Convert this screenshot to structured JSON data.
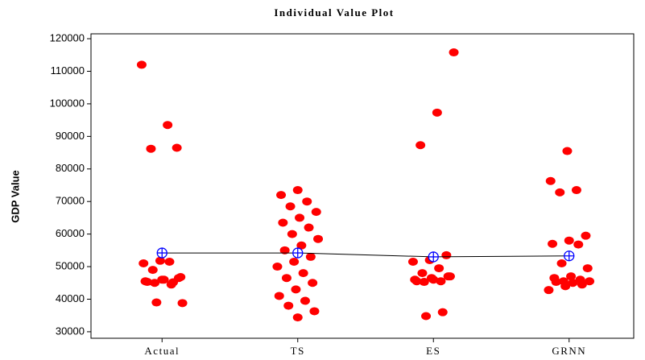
{
  "chart_data": {
    "type": "strip",
    "title": "Individual Value Plot",
    "y_label": "GDP Value",
    "categories": [
      "Actual",
      "TS",
      "ES",
      "GRNN"
    ],
    "series": [
      {
        "color": "#ff0000",
        "values": [
          [
            112000,
            93500,
            86200,
            86500,
            51800,
            51000,
            51500,
            49000,
            46500,
            46000,
            45500,
            44500,
            45000,
            46800,
            46000,
            45300,
            45200,
            39000,
            38800
          ],
          [
            73500,
            72000,
            70000,
            68500,
            66800,
            65000,
            63500,
            62000,
            60000,
            58500,
            56500,
            55000,
            53000,
            51500,
            50000,
            48000,
            46500,
            45000,
            43000,
            41000,
            39500,
            38000,
            36300,
            34400
          ],
          [
            115800,
            97300,
            87300,
            53500,
            52000,
            51500,
            49500,
            48000,
            47000,
            46500,
            46000,
            45500,
            45300,
            47000,
            46000,
            45500,
            36000,
            34800
          ],
          [
            85500,
            76300,
            73500,
            72800,
            59500,
            58000,
            57000,
            56800,
            51000,
            49500,
            47000,
            46500,
            46000,
            45500,
            45500,
            45000,
            45300,
            44500,
            44000,
            42800
          ]
        ]
      }
    ],
    "means": [
      54200,
      54200,
      53000,
      53300
    ],
    "mean_color": "#0000ff",
    "line_color": "#000000",
    "ylim": [
      28000,
      121500
    ],
    "yticks": [
      30000,
      40000,
      50000,
      60000,
      70000,
      80000,
      90000,
      100000,
      110000,
      120000
    ]
  }
}
